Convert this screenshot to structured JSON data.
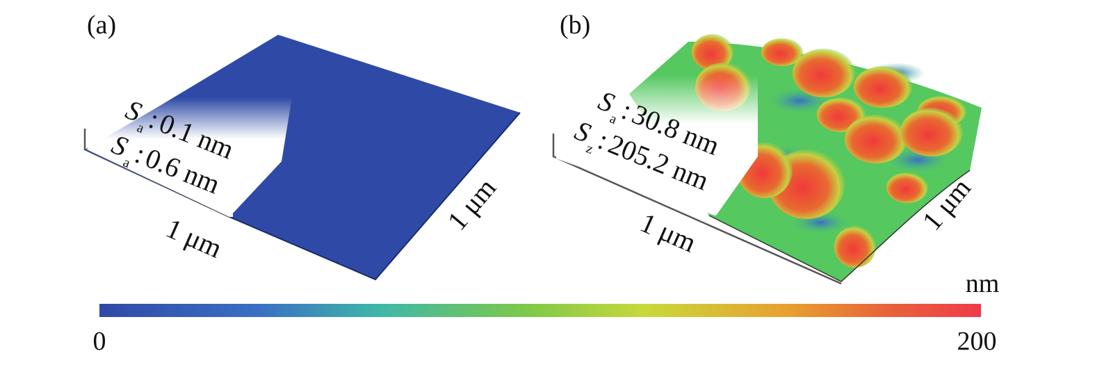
{
  "panel_a": {
    "label": "(a)",
    "x_extent": "1 μm",
    "y_extent": "1 μm",
    "metrics": [
      {
        "symbol": "S",
        "subscript": "a",
        "value": "0.1 nm"
      },
      {
        "symbol": "S",
        "subscript": "a",
        "value": "0.6 nm"
      }
    ]
  },
  "panel_b": {
    "label": "(b)",
    "x_extent": "1 μm",
    "y_extent": "1 μm",
    "metrics": [
      {
        "symbol": "S",
        "subscript": "a",
        "value": "30.8 nm"
      },
      {
        "symbol": "S",
        "subscript": "z",
        "value": "205.2 nm"
      }
    ]
  },
  "colorbar": {
    "unit": "nm",
    "min_label": "0",
    "max_label": "200",
    "colors": [
      "#2f4aa6",
      "#3a7bc8",
      "#3fb8a8",
      "#7cc84a",
      "#c8d83a",
      "#e8a030",
      "#e84a3a",
      "#f03a4a"
    ]
  }
}
